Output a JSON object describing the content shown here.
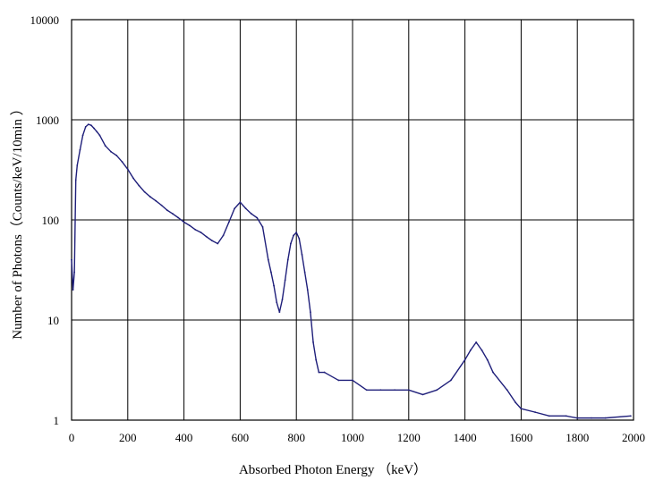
{
  "chart_data": {
    "type": "line",
    "title": "",
    "xlabel": "Absorbed Photon Energy （keV）",
    "ylabel": "Number of Photons（Counts/keV/10min ）",
    "xlim": [
      0,
      2000
    ],
    "ylim": [
      1,
      10000
    ],
    "yscale": "log",
    "grid": true,
    "legend": "none",
    "xticks": [
      "0",
      "200",
      "400",
      "600",
      "800",
      "1000",
      "1200",
      "1400",
      "1600",
      "1800",
      "2000"
    ],
    "yticks": [
      "1",
      "10",
      "100",
      "1000",
      "10000"
    ],
    "line_color": "#1f1f7a",
    "series": [
      {
        "name": "",
        "x": [
          0,
          5,
          10,
          15,
          20,
          30,
          40,
          50,
          60,
          70,
          80,
          90,
          100,
          120,
          140,
          160,
          180,
          200,
          220,
          240,
          260,
          280,
          300,
          320,
          340,
          360,
          380,
          400,
          420,
          440,
          460,
          480,
          500,
          520,
          540,
          560,
          580,
          600,
          620,
          640,
          660,
          680,
          700,
          710,
          720,
          730,
          740,
          750,
          760,
          770,
          780,
          790,
          800,
          810,
          820,
          830,
          840,
          850,
          860,
          870,
          880,
          900,
          950,
          1000,
          1050,
          1100,
          1150,
          1200,
          1250,
          1300,
          1350,
          1400,
          1420,
          1440,
          1460,
          1480,
          1500,
          1550,
          1580,
          1600,
          1650,
          1700,
          1760,
          1800,
          1850,
          1900,
          1990
        ],
        "y": [
          40,
          20,
          30,
          250,
          350,
          500,
          700,
          850,
          900,
          880,
          820,
          760,
          700,
          550,
          480,
          440,
          380,
          320,
          260,
          220,
          190,
          170,
          155,
          140,
          125,
          115,
          105,
          95,
          88,
          80,
          75,
          68,
          62,
          58,
          70,
          95,
          130,
          150,
          130,
          115,
          105,
          85,
          40,
          30,
          22,
          15,
          12,
          16,
          25,
          40,
          58,
          70,
          75,
          65,
          45,
          30,
          20,
          12,
          6,
          4,
          3,
          3,
          2.5,
          2.5,
          2,
          2,
          2,
          2,
          1.8,
          2,
          2.5,
          4,
          5,
          6,
          5,
          4,
          3,
          2,
          1.5,
          1.3,
          1.2,
          1.1,
          1.1,
          1.05,
          1.05,
          1.05,
          1.1
        ]
      }
    ]
  }
}
